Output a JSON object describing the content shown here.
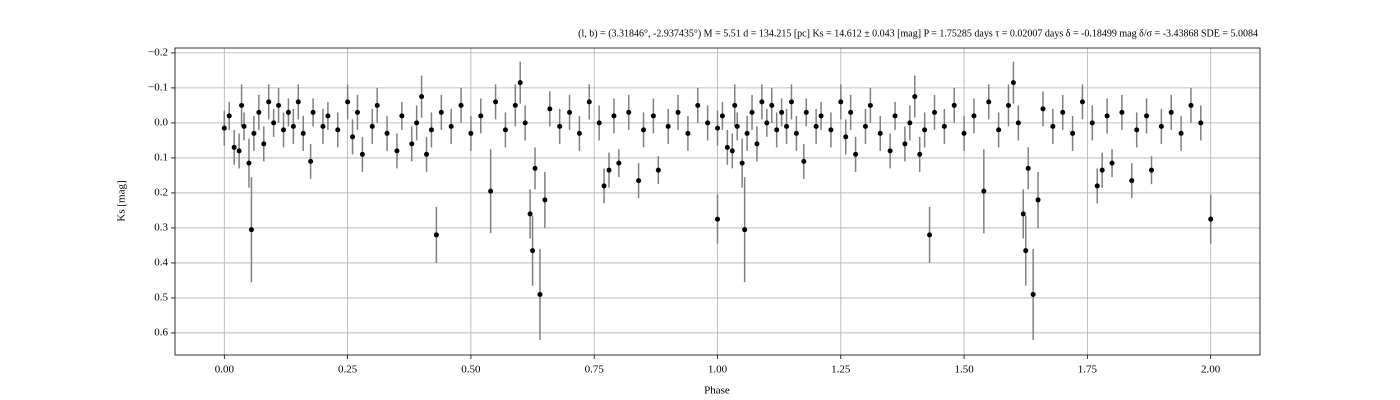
{
  "chart_data": {
    "type": "errorbar-scatter",
    "title": "(l, b) = (3.31846°, -2.937435°)     M = 5.51     d = 134.215 [pc]     Ks = 14.612 ± 0.043 [mag]     P = 1.75285 days     τ = 0.02007 days     δ = -0.18499 mag     δ/σ = -3.43868     SDE = 5.0084",
    "x_label": "Phase",
    "y_label": "Ks [mag]",
    "xlim": [
      -0.1,
      2.1
    ],
    "ylim": [
      -0.214,
      0.663
    ],
    "y_inverted": true,
    "grid": true,
    "xticks": [
      {
        "value": 0,
        "label": "0.00"
      },
      {
        "value": 0.25,
        "label": "0.25"
      },
      {
        "value": 0.5,
        "label": "0.50"
      },
      {
        "value": 0.75,
        "label": "0.75"
      },
      {
        "value": 1,
        "label": "1.00"
      },
      {
        "value": 1.25,
        "label": "1.25"
      },
      {
        "value": 1.5,
        "label": "1.50"
      },
      {
        "value": 1.75,
        "label": "1.75"
      },
      {
        "value": 2,
        "label": "2.00"
      }
    ],
    "yticks": [
      {
        "value": -0.2,
        "label": "−0.2"
      },
      {
        "value": -0.1,
        "label": "−0.1"
      },
      {
        "value": 0,
        "label": "0.0"
      },
      0.1,
      0.2,
      0.3,
      0.4,
      0.5,
      0.6
    ],
    "series": [
      {
        "color": "#000000",
        "error_color": "#808080",
        "x": [
          0,
          0.01,
          0.02,
          0.03,
          0.035,
          0.04,
          0.05,
          0.055,
          0.06,
          0.07,
          0.08,
          0.09,
          0.1,
          0.11,
          0.12,
          0.13,
          0.14,
          0.15,
          0.16,
          0.175,
          0.18,
          0.2,
          0.21,
          0.23,
          0.25,
          0.26,
          0.27,
          0.28,
          0.3,
          0.31,
          0.33,
          0.35,
          0.36,
          0.38,
          0.39,
          0.4,
          0.41,
          0.42,
          0.43,
          0.44,
          0.46,
          0.48,
          0.5,
          0.52,
          0.54,
          0.55,
          0.57,
          0.59,
          0.6,
          0.61,
          0.62,
          0.625,
          0.63,
          0.64,
          0.65,
          0.66,
          0.68,
          0.7,
          0.72,
          0.74,
          0.76,
          0.77,
          0.78,
          0.79,
          0.8,
          0.82,
          0.84,
          0.85,
          0.87,
          0.88,
          0.9,
          0.92,
          0.94,
          0.96,
          0.98,
          1.0,
          1.0,
          1.01,
          1.02,
          1.03,
          1.035,
          1.04,
          1.05,
          1.055,
          1.06,
          1.07,
          1.08,
          1.09,
          1.1,
          1.11,
          1.12,
          1.13,
          1.14,
          1.15,
          1.16,
          1.175,
          1.18,
          1.2,
          1.21,
          1.23,
          1.25,
          1.26,
          1.27,
          1.28,
          1.3,
          1.31,
          1.33,
          1.35,
          1.36,
          1.38,
          1.39,
          1.4,
          1.41,
          1.42,
          1.43,
          1.44,
          1.46,
          1.48,
          1.5,
          1.52,
          1.54,
          1.55,
          1.57,
          1.59,
          1.6,
          1.61,
          1.62,
          1.625,
          1.63,
          1.64,
          1.65,
          1.66,
          1.68,
          1.7,
          1.72,
          1.74,
          1.76,
          1.77,
          1.78,
          1.79,
          1.8,
          1.82,
          1.84,
          1.85,
          1.87,
          1.88,
          1.9,
          1.92,
          1.94,
          1.96,
          1.98,
          2.0
        ],
        "values": [
          0.015,
          -0.02,
          0.07,
          0.08,
          -0.05,
          0.01,
          0.115,
          0.305,
          0.03,
          -0.03,
          0.06,
          -0.06,
          0.0,
          -0.05,
          0.02,
          -0.03,
          0.01,
          -0.06,
          0.03,
          0.11,
          -0.03,
          0.01,
          -0.02,
          0.02,
          -0.06,
          0.04,
          -0.03,
          0.09,
          0.01,
          -0.05,
          0.03,
          0.08,
          -0.02,
          0.06,
          0.0,
          -0.075,
          0.09,
          0.02,
          0.32,
          -0.03,
          0.01,
          -0.05,
          0.03,
          -0.02,
          0.195,
          -0.06,
          0.02,
          -0.05,
          -0.115,
          0.0,
          0.26,
          0.365,
          0.13,
          0.49,
          0.22,
          -0.04,
          0.01,
          -0.03,
          0.03,
          -0.06,
          0.0,
          0.18,
          0.135,
          -0.02,
          0.115,
          -0.03,
          0.165,
          0.02,
          -0.02,
          0.135,
          0.01,
          -0.03,
          0.03,
          -0.05,
          0.0,
          0.275,
          0.015,
          -0.02,
          0.07,
          0.08,
          -0.05,
          0.01,
          0.115,
          0.305,
          0.03,
          -0.03,
          0.06,
          -0.06,
          0.0,
          -0.05,
          0.02,
          -0.03,
          0.01,
          -0.06,
          0.03,
          0.11,
          -0.03,
          0.01,
          -0.02,
          0.02,
          -0.06,
          0.04,
          -0.03,
          0.09,
          0.01,
          -0.05,
          0.03,
          0.08,
          -0.02,
          0.06,
          0.0,
          -0.075,
          0.09,
          0.02,
          0.32,
          -0.03,
          0.01,
          -0.05,
          0.03,
          -0.02,
          0.195,
          -0.06,
          0.02,
          -0.05,
          -0.115,
          0.0,
          0.26,
          0.365,
          0.13,
          0.49,
          0.22,
          -0.04,
          0.01,
          -0.03,
          0.03,
          -0.06,
          0.0,
          0.18,
          0.135,
          -0.02,
          0.115,
          -0.03,
          0.165,
          0.02,
          -0.02,
          0.135,
          0.01,
          -0.03,
          0.03,
          -0.05,
          0.0,
          0.275
        ],
        "errors": [
          0.05,
          0.04,
          0.05,
          0.05,
          0.06,
          0.04,
          0.07,
          0.15,
          0.05,
          0.05,
          0.05,
          0.05,
          0.04,
          0.05,
          0.05,
          0.04,
          0.05,
          0.05,
          0.05,
          0.05,
          0.04,
          0.05,
          0.04,
          0.05,
          0.05,
          0.05,
          0.05,
          0.05,
          0.05,
          0.05,
          0.05,
          0.05,
          0.04,
          0.05,
          0.05,
          0.06,
          0.05,
          0.05,
          0.08,
          0.05,
          0.05,
          0.05,
          0.05,
          0.05,
          0.12,
          0.05,
          0.05,
          0.06,
          0.06,
          0.05,
          0.07,
          0.1,
          0.06,
          0.13,
          0.08,
          0.05,
          0.05,
          0.05,
          0.05,
          0.05,
          0.05,
          0.05,
          0.05,
          0.05,
          0.04,
          0.05,
          0.05,
          0.05,
          0.05,
          0.04,
          0.05,
          0.05,
          0.05,
          0.05,
          0.05,
          0.07,
          0.05,
          0.04,
          0.05,
          0.05,
          0.06,
          0.04,
          0.07,
          0.15,
          0.05,
          0.05,
          0.05,
          0.05,
          0.04,
          0.05,
          0.05,
          0.04,
          0.05,
          0.05,
          0.05,
          0.05,
          0.04,
          0.05,
          0.04,
          0.05,
          0.05,
          0.05,
          0.05,
          0.05,
          0.05,
          0.05,
          0.05,
          0.05,
          0.04,
          0.05,
          0.05,
          0.06,
          0.05,
          0.05,
          0.08,
          0.05,
          0.05,
          0.05,
          0.05,
          0.05,
          0.12,
          0.05,
          0.05,
          0.06,
          0.06,
          0.05,
          0.07,
          0.1,
          0.06,
          0.13,
          0.08,
          0.05,
          0.05,
          0.05,
          0.05,
          0.05,
          0.05,
          0.05,
          0.05,
          0.05,
          0.04,
          0.05,
          0.05,
          0.05,
          0.05,
          0.04,
          0.05,
          0.05,
          0.05,
          0.05,
          0.05,
          0.07
        ]
      }
    ]
  }
}
